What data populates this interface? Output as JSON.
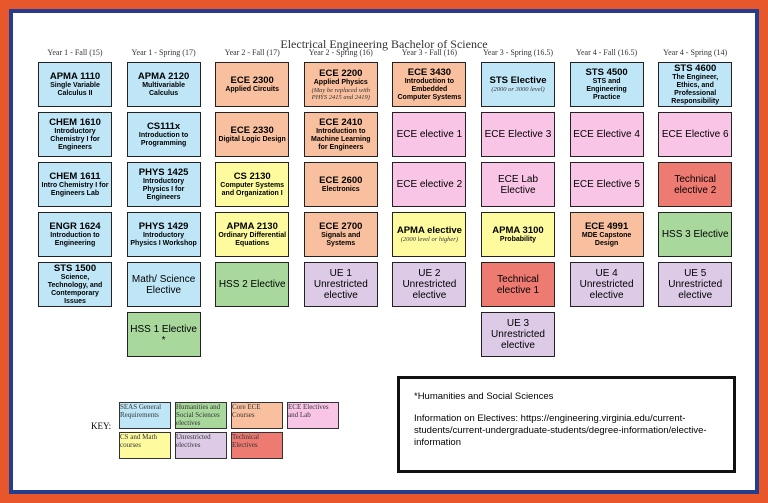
{
  "title": "Electrical Engineering Bachelor of Science",
  "columns": [
    {
      "header": "Year 1 - Fall (15)",
      "courses": [
        {
          "code": "APMA 1110",
          "title": "Single Variable Calculus II",
          "color": "#bfe6f7"
        },
        {
          "code": "CHEM 1610",
          "title": "Introductory Chemistry I for Engineers",
          "color": "#bfe6f7"
        },
        {
          "code": "CHEM 1611",
          "title": "Intro Chemistry I for Engineers Lab",
          "color": "#bfe6f7"
        },
        {
          "code": "ENGR 1624",
          "title": "Introduction to Engineering",
          "color": "#bfe6f7"
        },
        {
          "code": "STS 1500",
          "title": "Science, Technology, and Contemporary Issues",
          "color": "#bfe6f7"
        }
      ]
    },
    {
      "header": "Year 1 - Spring (17)",
      "courses": [
        {
          "code": "APMA 2120",
          "title": "Multivariable Calculus",
          "color": "#bfe6f7"
        },
        {
          "code": "CS111x",
          "title": "Introduction to Programming",
          "color": "#bfe6f7"
        },
        {
          "code": "PHYS 1425",
          "title": "Introductory Physics I for Engineers",
          "color": "#bfe6f7"
        },
        {
          "code": "PHYS 1429",
          "title": "Introductory Physics I Workshop",
          "color": "#bfe6f7"
        },
        {
          "code": "Math/ Science Elective",
          "color": "#bfe6f7"
        },
        {
          "code": "HSS 1 Elective *",
          "color": "#a8d89c"
        }
      ]
    },
    {
      "header": "Year 2 - Fall (17)",
      "courses": [
        {
          "code": "ECE 2300",
          "title": "Applied Circuits",
          "color": "#f8c09e"
        },
        {
          "code": "ECE 2330",
          "title": "Digital Logic Design",
          "color": "#f8c09e"
        },
        {
          "code": "CS 2130",
          "title": "Computer Systems and Organization I",
          "color": "#fdfb9e"
        },
        {
          "code": "APMA 2130",
          "title": "Ordinary Differential Equations",
          "color": "#fdfb9e"
        },
        {
          "code": "HSS 2 Elective",
          "color": "#a8d89c"
        }
      ]
    },
    {
      "header": "Year 2 - Spring (16)",
      "courses": [
        {
          "code": "ECE 2200",
          "title": "Applied Physics",
          "note": "(May be replaced with PHYS 2415 and 2419)",
          "color": "#f8c09e"
        },
        {
          "code": "ECE 2410",
          "title": "Introduction to Machine Learning for Engineers",
          "color": "#f8c09e"
        },
        {
          "code": "ECE 2600",
          "title": "Electronics",
          "color": "#f8c09e"
        },
        {
          "code": "ECE 2700",
          "title": "Signals and Systems",
          "color": "#f8c09e"
        },
        {
          "code": "UE 1 Unrestricted elective",
          "color": "#dccae6"
        }
      ]
    },
    {
      "header": "Year 3 - Fall (16)",
      "courses": [
        {
          "code": "ECE 3430",
          "title": "Introduction to Embedded Computer Systems",
          "color": "#f8c09e"
        },
        {
          "code": "ECE elective 1",
          "color": "#f9c5e6"
        },
        {
          "code": "ECE elective 2",
          "color": "#f9c5e6"
        },
        {
          "code": "APMA elective",
          "note": "(2000 level or higher)",
          "color": "#fdfb9e"
        },
        {
          "code": "UE 2 Unrestricted elective",
          "color": "#dccae6"
        }
      ]
    },
    {
      "header": "Year 3 - Spring (16.5)",
      "courses": [
        {
          "code": "STS Elective",
          "note": "(2000 or 3000 level)",
          "color": "#bfe6f7"
        },
        {
          "code": "ECE Elective 3",
          "color": "#f9c5e6"
        },
        {
          "code": "ECE Lab Elective",
          "color": "#f9c5e6"
        },
        {
          "code": "APMA 3100",
          "title": "Probability",
          "color": "#fdfb9e"
        },
        {
          "code": "Technical elective 1",
          "color": "#ee7b72"
        },
        {
          "code": "UE 3 Unrestricted elective",
          "color": "#dccae6"
        }
      ]
    },
    {
      "header": "Year 4 - Fall (16.5)",
      "courses": [
        {
          "code": "STS 4500",
          "title": "STS and Engineering Practice",
          "color": "#bfe6f7"
        },
        {
          "code": "ECE Elective 4",
          "color": "#f9c5e6"
        },
        {
          "code": "ECE Elective 5",
          "color": "#f9c5e6"
        },
        {
          "code": "ECE 4991",
          "title": "MDE Capstone Design",
          "color": "#f8c09e"
        },
        {
          "code": "UE 4 Unrestricted elective",
          "color": "#dccae6"
        }
      ]
    },
    {
      "header": "Year 4 - Spring (14)",
      "courses": [
        {
          "code": "STS 4600",
          "title": "The Engineer, Ethics, and Professional Responsibility",
          "color": "#bfe6f7"
        },
        {
          "code": "ECE Elective 6",
          "color": "#f9c5e6"
        },
        {
          "code": "Technical elective 2",
          "color": "#ee7b72"
        },
        {
          "code": "HSS 3 Elective",
          "color": "#a8d89c"
        },
        {
          "code": "UE 5 Unrestricted elective",
          "color": "#dccae6"
        }
      ]
    }
  ],
  "key": {
    "label": "KEY:",
    "items": [
      {
        "text": "SEAS General Requirements",
        "color": "#bfe6f7"
      },
      {
        "text": "Humanities and Social Sciences electives",
        "color": "#a8d89c"
      },
      {
        "text": "Core ECE Courses",
        "color": "#f8c09e"
      },
      {
        "text": "ECE Electives and Lab",
        "color": "#f9c5e6"
      },
      {
        "text": "CS and Math courses",
        "color": "#fdfb9e"
      },
      {
        "text": "Unrestricted electives",
        "color": "#dccae6"
      },
      {
        "text": "Technical Electives",
        "color": "#ee7b72"
      }
    ]
  },
  "notes": {
    "footnote": "*Humanities and Social Sciences",
    "info": "Information on Electives: https://engineering.virginia.edu/current-students/current-undergraduate-students/degree-information/elective-information"
  }
}
